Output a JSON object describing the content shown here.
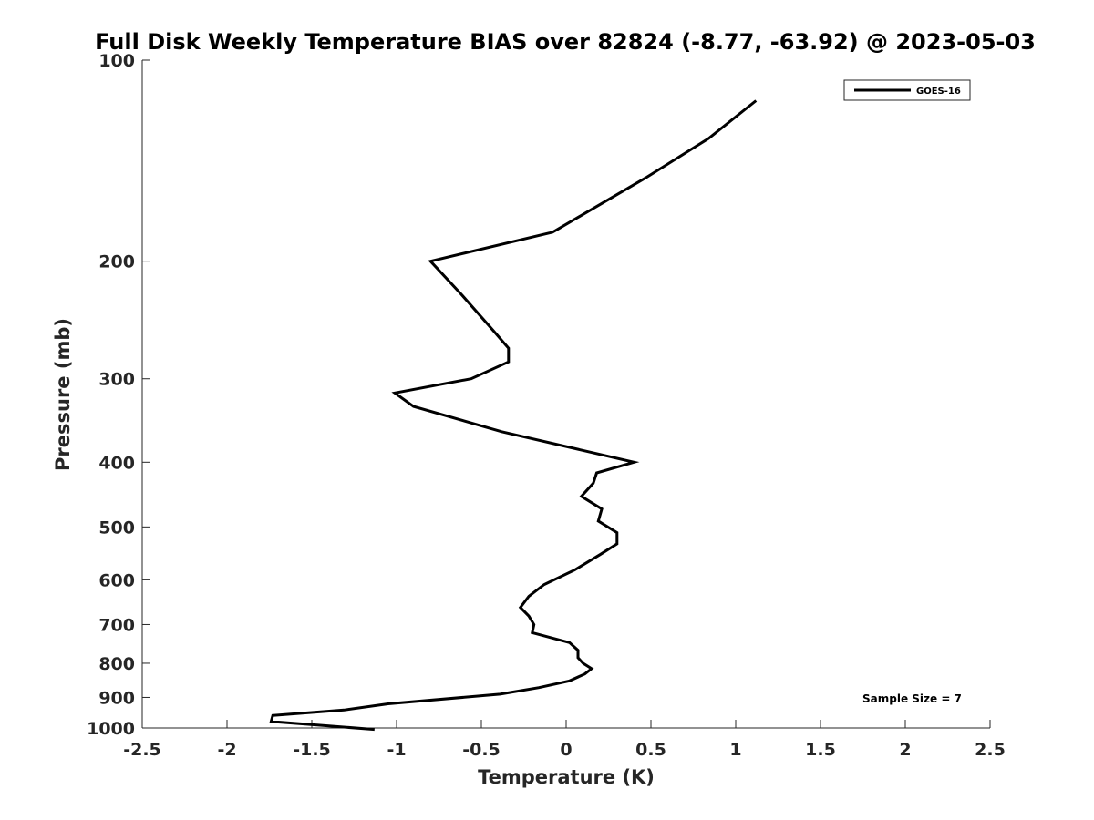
{
  "chart_data": {
    "type": "line",
    "title": "Full Disk Weekly Temperature BIAS over 82824 (-8.77, -63.92) @ 2023-05-03",
    "xlabel": "Temperature (K)",
    "ylabel": "Pressure (mb)",
    "xlim": [
      -2.5,
      2.5
    ],
    "ylim": [
      1000,
      100
    ],
    "yscale": "log",
    "y_reversed": true,
    "xticks": [
      -2.5,
      -2,
      -1.5,
      -1,
      -0.5,
      0,
      0.5,
      1,
      1.5,
      2,
      2.5
    ],
    "xtick_labels": [
      "-2.5",
      "-2",
      "-1.5",
      "-1",
      "-0.5",
      "0",
      "0.5",
      "1",
      "1.5",
      "2",
      "2.5"
    ],
    "yticks": [
      100,
      200,
      300,
      400,
      500,
      600,
      700,
      800,
      900,
      1000
    ],
    "ytick_labels": [
      "100",
      "200",
      "300",
      "400",
      "500",
      "600",
      "700",
      "800",
      "900",
      "1000"
    ],
    "grid": false,
    "legend_position": "top-right",
    "series": [
      {
        "name": "GOES-16",
        "color": "#000000",
        "x": [
          1.12,
          0.84,
          0.47,
          -0.08,
          -0.8,
          -0.62,
          -0.43,
          -0.34,
          -0.34,
          -0.56,
          -1.01,
          -0.9,
          -0.38,
          0.4,
          0.18,
          0.16,
          0.09,
          0.21,
          0.19,
          0.3,
          0.3,
          0.2,
          0.05,
          -0.13,
          -0.22,
          -0.27,
          -0.22,
          -0.19,
          -0.2,
          0.02,
          0.07,
          0.07,
          0.1,
          0.15,
          0.11,
          0.02,
          -0.16,
          -0.39,
          -1.05,
          -1.31,
          -1.73,
          -1.74,
          -1.13
        ],
        "y": [
          115,
          131,
          150,
          181,
          200,
          224,
          254,
          270,
          283,
          300,
          315,
          330,
          360,
          400,
          415,
          430,
          450,
          470,
          490,
          510,
          530,
          550,
          580,
          610,
          635,
          660,
          680,
          700,
          720,
          745,
          765,
          785,
          800,
          815,
          830,
          850,
          870,
          890,
          920,
          940,
          958,
          978,
          1005
        ]
      }
    ],
    "annotations": [
      {
        "text": "Sample Size = 7",
        "position": "bottom-right"
      }
    ]
  }
}
